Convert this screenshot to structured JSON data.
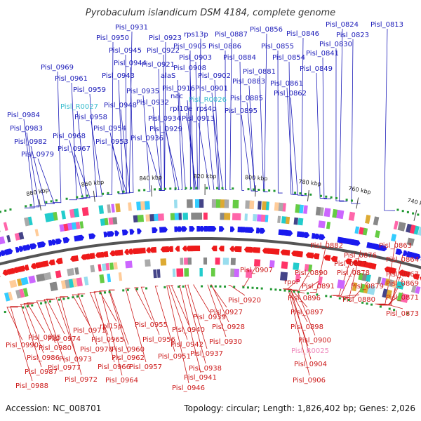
{
  "title": "Pyrobaculum islandicum DSM 4184, complete genome",
  "footer": {
    "accession": "Accession: NC_008701",
    "summary": "Topology: circular; Length: 1,826,402 bp; Genes: 2,026"
  },
  "colors": {
    "top_label": "#1a1ab8",
    "top_rna_label": "#33bbcc",
    "bottom_label": "#cc1a1a",
    "bottom_rna_label": "#ee88bb",
    "forward_gene": "#1a1aee",
    "reverse_gene": "#ee1a1a",
    "backbone": "#555555"
  },
  "kbp_marks": [
    "740 kbp",
    "760 kbp",
    "780 kbp",
    "800 kbp",
    "820 kbp",
    "840 kbp",
    "860 kbp",
    "880 kbp"
  ],
  "top_labels": [
    {
      "text": "Pisl_0931",
      "rna": false
    },
    {
      "text": "Pisl_0950",
      "rna": false
    },
    {
      "text": "Pisl_0923",
      "rna": false
    },
    {
      "text": "rps13p",
      "rna": false
    },
    {
      "text": "Pisl_0887",
      "rna": false
    },
    {
      "text": "Pisl_0856",
      "rna": false
    },
    {
      "text": "Pisl_0846",
      "rna": false
    },
    {
      "text": "Pisl_0824",
      "rna": false
    },
    {
      "text": "Pisl_0813",
      "rna": false
    },
    {
      "text": "Pisl_0945",
      "rna": false
    },
    {
      "text": "Pisl_0922",
      "rna": false
    },
    {
      "text": "Pisl_0905",
      "rna": false
    },
    {
      "text": "Pisl_0886",
      "rna": false
    },
    {
      "text": "Pisl_0855",
      "rna": false
    },
    {
      "text": "Pisl_0823",
      "rna": false
    },
    {
      "text": "Pisl_0903",
      "rna": false
    },
    {
      "text": "Pisl_0884",
      "rna": false
    },
    {
      "text": "Pisl_0854",
      "rna": false
    },
    {
      "text": "Pisl_0830",
      "rna": false
    },
    {
      "text": "Pisl_0944",
      "rna": false
    },
    {
      "text": "Pisl_0921",
      "rna": false
    },
    {
      "text": "Pisl_0908",
      "rna": false
    },
    {
      "text": "Pisl_0841",
      "rna": false
    },
    {
      "text": "Pisl_0969",
      "rna": false
    },
    {
      "text": "Pisl_0943",
      "rna": false
    },
    {
      "text": "alaS",
      "rna": false
    },
    {
      "text": "Pisl_0902",
      "rna": false
    },
    {
      "text": "Pisl_0881",
      "rna": false
    },
    {
      "text": "Pisl_0849",
      "rna": false
    },
    {
      "text": "Pisl_0961",
      "rna": false
    },
    {
      "text": "Pisl_0883",
      "rna": false
    },
    {
      "text": "Pisl_0959",
      "rna": false
    },
    {
      "text": "Pisl_0935",
      "rna": false
    },
    {
      "text": "Pisl_0916",
      "rna": false
    },
    {
      "text": "Pisl_0901",
      "rna": false
    },
    {
      "text": "Pisl_0861",
      "rna": false
    },
    {
      "text": "nac",
      "rna": false
    },
    {
      "text": "Pisl_0885",
      "rna": false
    },
    {
      "text": "Pisl_0862",
      "rna": false
    },
    {
      "text": "Pisl_0932",
      "rna": false
    },
    {
      "text": "Pisl_R0026",
      "rna": true
    },
    {
      "text": "Pisl_R0027",
      "rna": true
    },
    {
      "text": "Pisl_0948",
      "rna": false
    },
    {
      "text": "rpl10e",
      "rna": false
    },
    {
      "text": "rps4p",
      "rna": false
    },
    {
      "text": "Pisl_0895",
      "rna": false
    },
    {
      "text": "Pisl_0984",
      "rna": false
    },
    {
      "text": "Pisl_0958",
      "rna": false
    },
    {
      "text": "Pisl_0934",
      "rna": false
    },
    {
      "text": "Pisl_0913",
      "rna": false
    },
    {
      "text": "Pisl_0983",
      "rna": false
    },
    {
      "text": "Pisl_0954",
      "rna": false
    },
    {
      "text": "Pisl_0929",
      "rna": false
    },
    {
      "text": "Pisl_0968",
      "rna": false
    },
    {
      "text": "Pisl_0936",
      "rna": false
    },
    {
      "text": "Pisl_0982",
      "rna": false
    },
    {
      "text": "Pisl_0953",
      "rna": false
    },
    {
      "text": "Pisl_0967",
      "rna": false
    },
    {
      "text": "Pisl_0979",
      "rna": false
    }
  ],
  "bottom_labels": [
    {
      "text": "Pisl_0882",
      "rna": false
    },
    {
      "text": "Pisl_0863",
      "rna": false
    },
    {
      "text": "Pisl_0876",
      "rna": false
    },
    {
      "text": "Pisl_0877",
      "rna": false
    },
    {
      "text": "Pisl_0864",
      "rna": false
    },
    {
      "text": "Pisl_0907",
      "rna": false
    },
    {
      "text": "Pisl_0890",
      "rna": false
    },
    {
      "text": "Pisl_0878",
      "rna": false
    },
    {
      "text": "Pisl_0867",
      "rna": false
    },
    {
      "text": "rpoP",
      "rna": false
    },
    {
      "text": "Pisl_0891",
      "rna": false
    },
    {
      "text": "Pisl_0879",
      "rna": false
    },
    {
      "text": "Pisl_0869",
      "rna": false
    },
    {
      "text": "Pisl_0920",
      "rna": false
    },
    {
      "text": "Pisl_0896",
      "rna": false
    },
    {
      "text": "Pisl_0880",
      "rna": false
    },
    {
      "text": "Pisl_0871",
      "rna": false
    },
    {
      "text": "Pisl_0927",
      "rna": false
    },
    {
      "text": "Pisl_0897",
      "rna": false
    },
    {
      "text": "Pisl_0873",
      "rna": false
    },
    {
      "text": "Pisl_0939",
      "rna": false
    },
    {
      "text": "Pisl_0955",
      "rna": false
    },
    {
      "text": "Pisl_0928",
      "rna": false
    },
    {
      "text": "rpl15p",
      "rna": false
    },
    {
      "text": "Pisl_0940",
      "rna": false
    },
    {
      "text": "Pisl_0898",
      "rna": false
    },
    {
      "text": "Pisl_0971",
      "rna": false
    },
    {
      "text": "Pisl_0985",
      "rna": false
    },
    {
      "text": "Pisl_0974",
      "rna": false
    },
    {
      "text": "Pisl_0965",
      "rna": false
    },
    {
      "text": "Pisl_0956",
      "rna": false
    },
    {
      "text": "Pisl_0930",
      "rna": false
    },
    {
      "text": "Pisl_0900",
      "rna": false
    },
    {
      "text": "Pisl_0990",
      "rna": false
    },
    {
      "text": "Pisl_0980",
      "rna": false
    },
    {
      "text": "Pisl_0970",
      "rna": false
    },
    {
      "text": "Pisl_0960",
      "rna": false
    },
    {
      "text": "Pisl_0942",
      "rna": false
    },
    {
      "text": "Pisl_R0025",
      "rna": true
    },
    {
      "text": "Pisl_0986",
      "rna": false
    },
    {
      "text": "Pisl_0973",
      "rna": false
    },
    {
      "text": "Pisl_0962",
      "rna": false
    },
    {
      "text": "Pisl_0951",
      "rna": false
    },
    {
      "text": "Pisl_0937",
      "rna": false
    },
    {
      "text": "Pisl_0904",
      "rna": false
    },
    {
      "text": "Pisl_0977",
      "rna": false
    },
    {
      "text": "Pisl_0966",
      "rna": false
    },
    {
      "text": "Pisl_0957",
      "rna": false
    },
    {
      "text": "Pisl_0938",
      "rna": false
    },
    {
      "text": "Pisl_0987",
      "rna": false
    },
    {
      "text": "Pisl_0972",
      "rna": false
    },
    {
      "text": "Pisl_0964",
      "rna": false
    },
    {
      "text": "Pisl_0941",
      "rna": false
    },
    {
      "text": "Pisl_0906",
      "rna": false
    },
    {
      "text": "Pisl_0988",
      "rna": false
    },
    {
      "text": "Pisl_0946",
      "rna": false
    }
  ]
}
